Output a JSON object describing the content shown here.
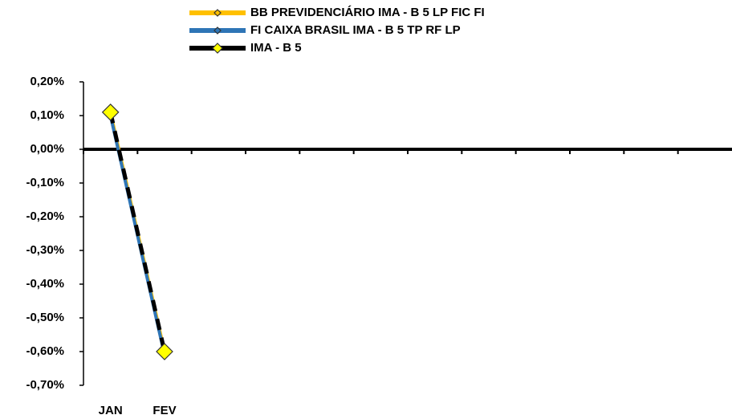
{
  "chart_data": {
    "type": "line",
    "categories": [
      "JAN",
      "FEV",
      null,
      null,
      null,
      null,
      null,
      null,
      null,
      null,
      null,
      null
    ],
    "series": [
      {
        "name": "BB PREVIDENCIÁRIO IMA - B 5 LP FIC FI",
        "color": "#FFC000",
        "values": [
          0.11,
          -0.6,
          null,
          null,
          null,
          null,
          null,
          null,
          null,
          null,
          null,
          null
        ]
      },
      {
        "name": "FI CAIXA BRASIL IMA - B 5 TP RF LP",
        "color": "#2E75B6",
        "values": [
          0.1,
          -0.61,
          null,
          null,
          null,
          null,
          null,
          null,
          null,
          null,
          null,
          null
        ]
      },
      {
        "name": "IMA - B 5",
        "color": "#000000",
        "values": [
          0.11,
          -0.6,
          null,
          null,
          null,
          null,
          null,
          null,
          null,
          null,
          null,
          null
        ]
      }
    ],
    "ylim": [
      -0.7,
      0.2
    ],
    "yticks": [
      {
        "value": 0.2,
        "label": "0,20%"
      },
      {
        "value": 0.1,
        "label": "0,10%"
      },
      {
        "value": 0,
        "label": "0,00%"
      },
      {
        "value": -0.1,
        "label": "-0,10%"
      },
      {
        "value": -0.2,
        "label": "-0,20%"
      },
      {
        "value": -0.3,
        "label": "-0,30%"
      },
      {
        "value": -0.4,
        "label": "-0,40%"
      },
      {
        "value": -0.5,
        "label": "-0,50%"
      },
      {
        "value": -0.6,
        "label": "-0,60%"
      },
      {
        "value": -0.7,
        "label": "-0,70%"
      }
    ],
    "grid": false,
    "legend": "top"
  }
}
